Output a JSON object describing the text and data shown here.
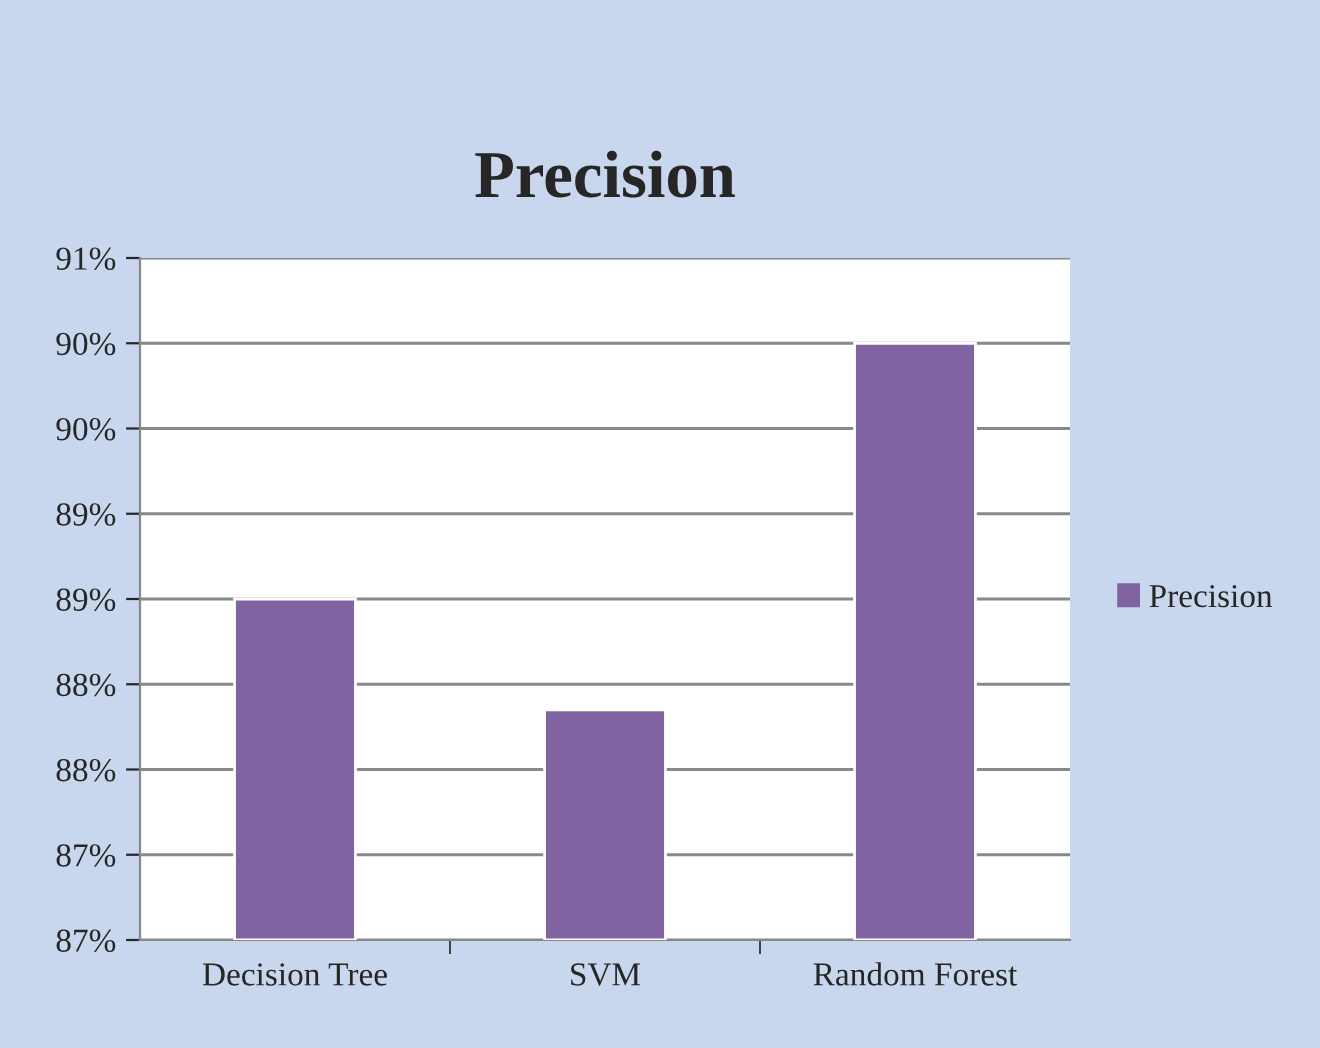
{
  "chart_data": {
    "type": "bar",
    "title": "Precision",
    "categories": [
      "Decision Tree",
      "SVM",
      "Random Forest"
    ],
    "series": [
      {
        "name": "Precision",
        "color": "#8064a2",
        "values": [
          88.75,
          88.1,
          90.25
        ]
      }
    ],
    "ylim": [
      86.75,
      90.75
    ],
    "yticks": [
      {
        "value": 86.75,
        "label": "87%"
      },
      {
        "value": 87.25,
        "label": "87%"
      },
      {
        "value": 87.75,
        "label": "88%"
      },
      {
        "value": 88.25,
        "label": "88%"
      },
      {
        "value": 88.75,
        "label": "89%"
      },
      {
        "value": 89.25,
        "label": "89%"
      },
      {
        "value": 89.75,
        "label": "90%"
      },
      {
        "value": 90.25,
        "label": "90%"
      },
      {
        "value": 90.75,
        "label": "91%"
      }
    ],
    "grid": "y",
    "legend": "right"
  }
}
